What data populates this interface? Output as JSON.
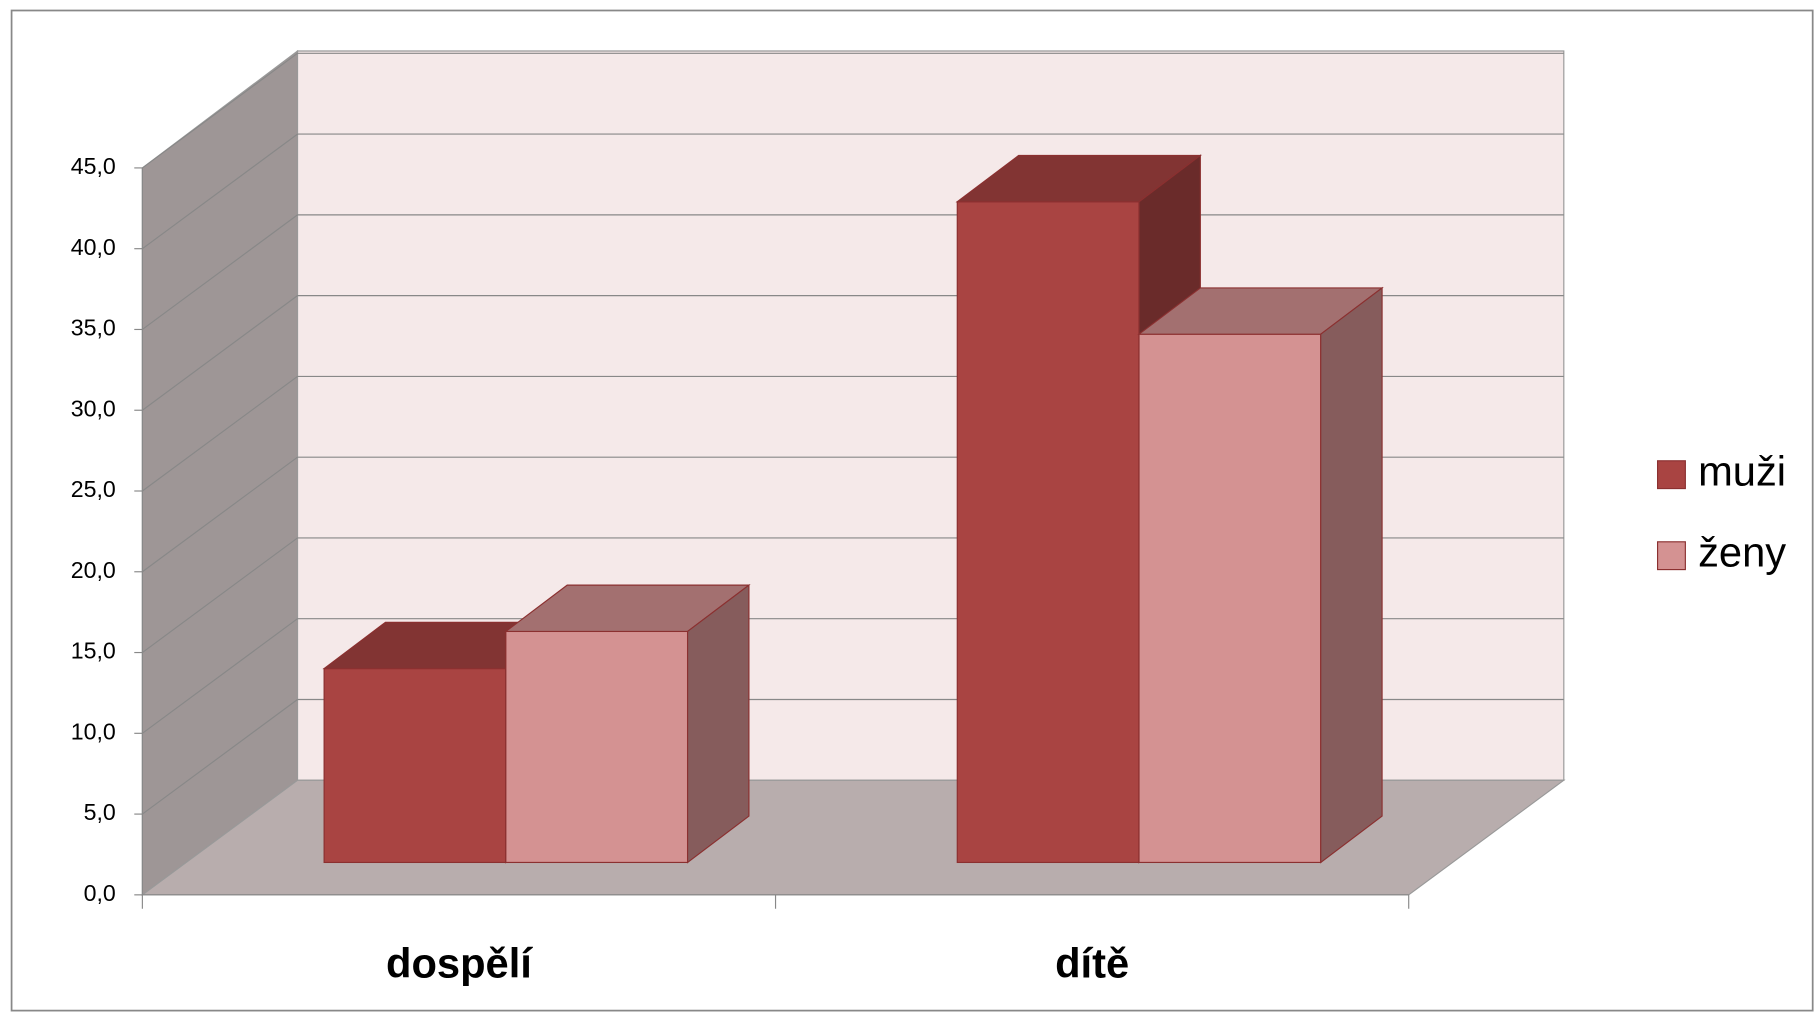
{
  "chart_data": {
    "type": "bar3d",
    "categories": [
      "dospělí",
      "dítě"
    ],
    "series": [
      {
        "name": "muži",
        "color": "#a94442",
        "values": [
          12.0,
          40.9
        ]
      },
      {
        "name": "ženy",
        "color": "#d49292",
        "values": [
          14.3,
          32.7
        ]
      }
    ],
    "ylim": [
      0,
      45
    ],
    "yticks": [
      {
        "value": 0,
        "label": "0,0"
      },
      {
        "value": 5,
        "label": "5,0"
      },
      {
        "value": 10,
        "label": "10,0"
      },
      {
        "value": 15,
        "label": "15,0"
      },
      {
        "value": 20,
        "label": "20,0"
      },
      {
        "value": 25,
        "label": "25,0"
      },
      {
        "value": 30,
        "label": "30,0"
      },
      {
        "value": 35,
        "label": "35,0"
      },
      {
        "value": 40,
        "label": "40,0"
      },
      {
        "value": 45,
        "label": "45,0"
      }
    ],
    "grid": true,
    "legend": "right"
  }
}
